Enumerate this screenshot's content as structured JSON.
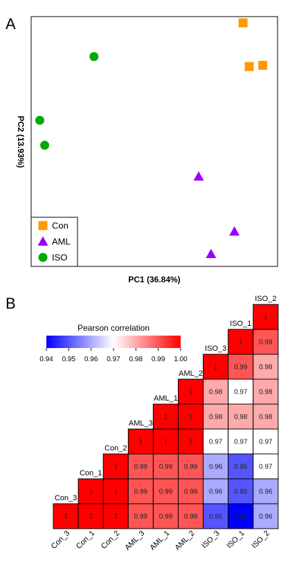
{
  "panels": {
    "a_label": "A",
    "b_label": "B"
  },
  "chart_data": [
    {
      "type": "scatter",
      "title": "",
      "xlabel": "PC1 (36.84%)",
      "ylabel": "PC2 (13.93%)",
      "xlim": [
        0,
        100
      ],
      "ylim": [
        0,
        100
      ],
      "grid": false,
      "axis_ticks_shown": false,
      "legend_position": "bottom-left",
      "series": [
        {
          "name": "Con",
          "marker": "square",
          "color": "#FF9900",
          "points": [
            {
              "x": 86,
              "y": 97.5
            },
            {
              "x": 88.5,
              "y": 80
            },
            {
              "x": 94,
              "y": 80.5
            }
          ]
        },
        {
          "name": "AML",
          "marker": "triangle",
          "color": "#9900FF",
          "points": [
            {
              "x": 68,
              "y": 36
            },
            {
              "x": 82.5,
              "y": 14
            },
            {
              "x": 73,
              "y": 5
            }
          ]
        },
        {
          "name": "ISO",
          "marker": "circle",
          "color": "#00AA00",
          "points": [
            {
              "x": 25.5,
              "y": 84
            },
            {
              "x": 3.5,
              "y": 58.5
            },
            {
              "x": 5.5,
              "y": 48.5
            }
          ]
        }
      ]
    },
    {
      "type": "heatmap",
      "title": "",
      "legend_title": "Pearson correlation",
      "colorbar_ticks": [
        "0.94",
        "0.95",
        "0.96",
        "0.97",
        "0.98",
        "0.99",
        "1.00"
      ],
      "color_range": [
        0.94,
        1.0
      ],
      "colors": {
        "low": "#0000FF",
        "mid": "#FFFFFF",
        "high": "#FF0000"
      },
      "labels": [
        "Con_3",
        "Con_1",
        "Con_2",
        "AML_3",
        "AML_1",
        "AML_2",
        "ISO_3",
        "ISO_1",
        "ISO_2"
      ],
      "values": [
        [
          1,
          1,
          1,
          0.99,
          0.99,
          0.99,
          0.95,
          0.94,
          0.96
        ],
        [
          1,
          1,
          1,
          0.99,
          0.99,
          0.99,
          0.96,
          0.95,
          0.96
        ],
        [
          1,
          1,
          1,
          0.99,
          0.99,
          0.99,
          0.96,
          0.95,
          0.97
        ],
        [
          0.99,
          0.99,
          0.99,
          1,
          1,
          1,
          0.97,
          0.97,
          0.97
        ],
        [
          0.99,
          0.99,
          0.99,
          1,
          1,
          1,
          0.98,
          0.98,
          0.98
        ],
        [
          0.99,
          0.99,
          0.99,
          1,
          1,
          1,
          0.98,
          0.97,
          0.98
        ],
        [
          0.95,
          0.96,
          0.96,
          0.97,
          0.98,
          0.98,
          1,
          0.99,
          0.98
        ],
        [
          0.94,
          0.95,
          0.95,
          0.97,
          0.98,
          0.97,
          0.99,
          1,
          0.99
        ],
        [
          0.96,
          0.96,
          0.97,
          0.97,
          0.98,
          0.98,
          0.98,
          0.99,
          1
        ]
      ],
      "shape": "lower-triangle"
    }
  ]
}
